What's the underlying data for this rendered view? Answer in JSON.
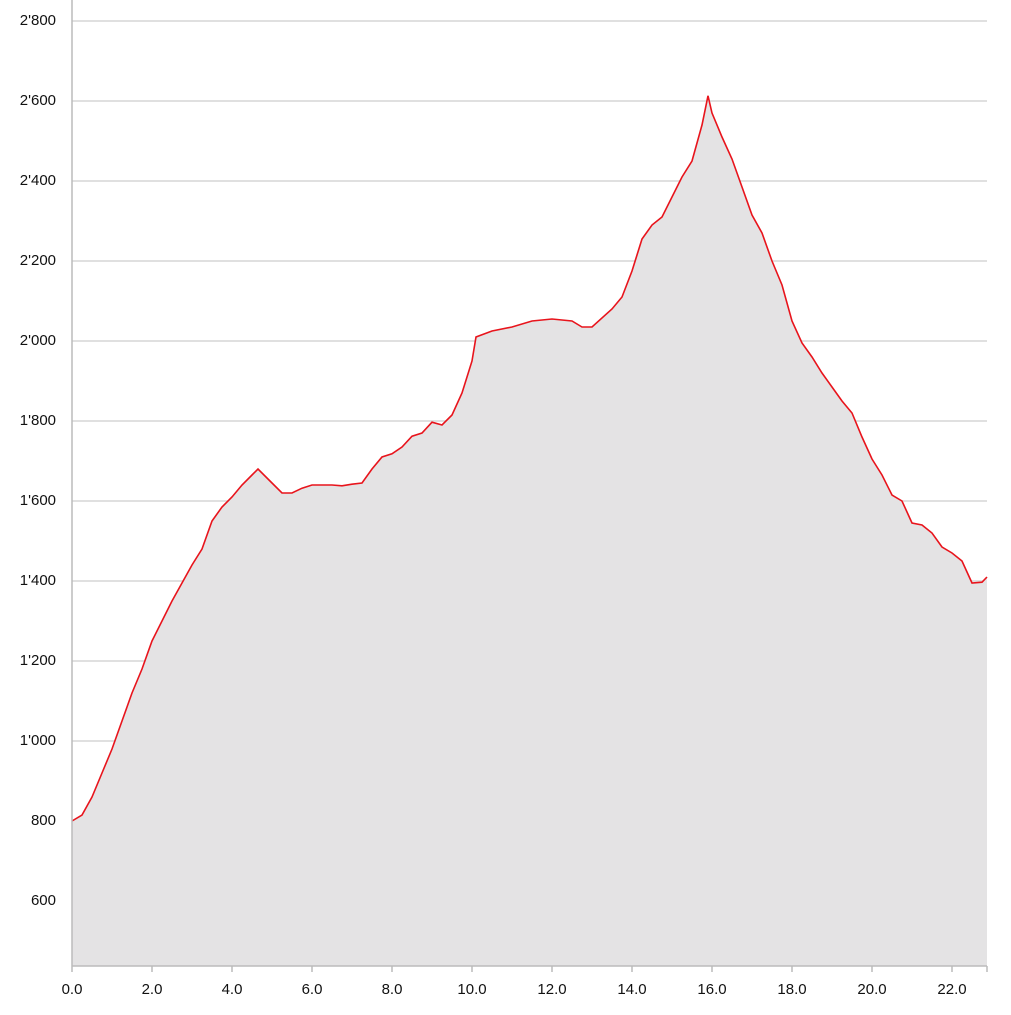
{
  "chart_data": {
    "type": "area",
    "x": [
      0.0,
      0.25,
      0.5,
      0.75,
      1.0,
      1.25,
      1.5,
      1.75,
      2.0,
      2.25,
      2.5,
      2.75,
      3.0,
      3.25,
      3.5,
      3.75,
      4.0,
      4.25,
      4.5,
      4.65,
      5.0,
      5.25,
      5.5,
      5.75,
      6.0,
      6.25,
      6.5,
      6.75,
      7.0,
      7.25,
      7.5,
      7.75,
      8.0,
      8.25,
      8.5,
      8.75,
      9.0,
      9.25,
      9.5,
      9.75,
      10.0,
      10.1,
      10.5,
      11.0,
      11.5,
      12.0,
      12.5,
      12.75,
      13.0,
      13.5,
      13.75,
      14.0,
      14.25,
      14.5,
      14.75,
      15.0,
      15.25,
      15.5,
      15.75,
      15.9,
      16.0,
      16.25,
      16.5,
      16.75,
      17.0,
      17.25,
      17.5,
      17.75,
      18.0,
      18.25,
      18.5,
      18.75,
      19.0,
      19.25,
      19.5,
      19.75,
      20.0,
      20.25,
      20.5,
      20.75,
      21.0,
      21.25,
      21.5,
      21.75,
      22.0,
      22.25,
      22.5,
      22.75,
      22.875
    ],
    "values": [
      800,
      815,
      860,
      920,
      980,
      1050,
      1120,
      1180,
      1250,
      1300,
      1350,
      1395,
      1440,
      1480,
      1550,
      1585,
      1610,
      1640,
      1665,
      1680,
      1645,
      1620,
      1620,
      1632,
      1640,
      1640,
      1640,
      1638,
      1642,
      1645,
      1680,
      1710,
      1718,
      1735,
      1762,
      1770,
      1797,
      1790,
      1815,
      1870,
      1950,
      2010,
      2025,
      2035,
      2050,
      2055,
      2050,
      2035,
      2035,
      2080,
      2110,
      2175,
      2255,
      2290,
      2310,
      2360,
      2410,
      2450,
      2540,
      2613,
      2570,
      2510,
      2455,
      2385,
      2315,
      2270,
      2200,
      2140,
      2050,
      1995,
      1960,
      1920,
      1885,
      1850,
      1820,
      1760,
      1705,
      1665,
      1615,
      1600,
      1545,
      1540,
      1520,
      1485,
      1470,
      1450,
      1395,
      1397,
      1410
    ],
    "color": "#e8141c",
    "fill": "#e4e3e4",
    "xlim": [
      0,
      22.875
    ],
    "ylim": [
      437.5,
      2852.5
    ],
    "xticks": [
      {
        "value": 0,
        "label": "0.0"
      },
      {
        "value": 2,
        "label": "2.0"
      },
      {
        "value": 4,
        "label": "4.0"
      },
      {
        "value": 6,
        "label": "6.0"
      },
      {
        "value": 8,
        "label": "8.0"
      },
      {
        "value": 10,
        "label": "10.0"
      },
      {
        "value": 12,
        "label": "12.0"
      },
      {
        "value": 14,
        "label": "14.0"
      },
      {
        "value": 16,
        "label": "16.0"
      },
      {
        "value": 18,
        "label": "18.0"
      },
      {
        "value": 20,
        "label": "20.0"
      },
      {
        "value": 22,
        "label": "22.0"
      }
    ],
    "yticks": [
      600,
      800,
      {
        "value": 1000,
        "label": "1'000"
      },
      {
        "value": 1200,
        "label": "1'200"
      },
      {
        "value": 1400,
        "label": "1'400"
      },
      {
        "value": 1600,
        "label": "1'600"
      },
      {
        "value": 1800,
        "label": "1'800"
      },
      {
        "value": 2000,
        "label": "2'000"
      },
      {
        "value": 2200,
        "label": "2'200"
      },
      {
        "value": 2400,
        "label": "2'400"
      },
      {
        "value": 2600,
        "label": "2'600"
      },
      {
        "value": 2800,
        "label": "2'800"
      }
    ],
    "grid": true
  }
}
